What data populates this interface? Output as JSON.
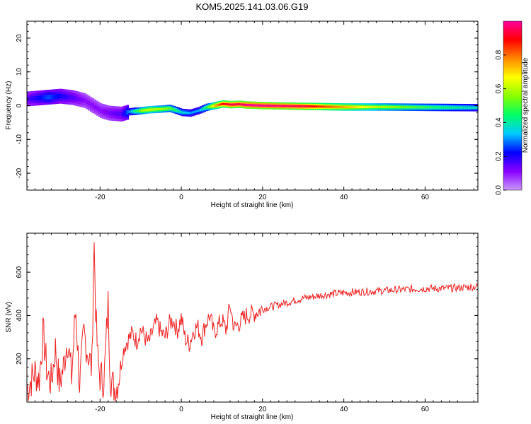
{
  "title": "KOM5.2025.141.03.06.G19",
  "chart_data": [
    {
      "type": "heatmap",
      "xlabel": "Height of straight line (km)",
      "ylabel": "Frequency (Hz)",
      "xlim": [
        -38,
        73
      ],
      "ylim": [
        -25,
        25
      ],
      "xticks": [
        -20,
        0,
        20,
        40,
        60
      ],
      "yticks": [
        -20,
        -10,
        0,
        10,
        20
      ],
      "colorbar": {
        "label": "Normalized spectral amplitude",
        "range": [
          0,
          1
        ],
        "ticks": [
          0.0,
          0.2,
          0.4,
          0.6,
          0.8
        ],
        "colormap": [
          "#cc99ff",
          "#8800ff",
          "#0000ff",
          "#00ccff",
          "#00ff66",
          "#88ff00",
          "#ffff00",
          "#ff8800",
          "#ff0000",
          "#ff0099"
        ]
      },
      "ridge": {
        "x": [
          -38,
          -33,
          -30,
          -27,
          -24,
          -22,
          -20,
          -18,
          -15,
          -13,
          -10,
          -8,
          -5,
          -3,
          0,
          2,
          4,
          6,
          8,
          10,
          12,
          14,
          16,
          20,
          30,
          40,
          50,
          60,
          73
        ],
        "freq": [
          2,
          2.5,
          2.8,
          2.4,
          1.5,
          0,
          -1.5,
          -2.2,
          -2.5,
          -1.8,
          -1.5,
          -1.2,
          -1,
          -0.8,
          -2,
          -2.2,
          -1.5,
          -0.5,
          0,
          0.5,
          0.3,
          0.4,
          0.2,
          0,
          -0.2,
          -0.4,
          -0.4,
          -0.5,
          -0.6
        ],
        "amplitude": [
          0.15,
          0.25,
          0.2,
          0.15,
          0.1,
          0.1,
          0.1,
          0.12,
          0.15,
          0.3,
          0.55,
          0.6,
          0.55,
          0.5,
          0.35,
          0.3,
          0.3,
          0.45,
          0.7,
          0.85,
          0.9,
          0.9,
          0.95,
          0.95,
          0.9,
          0.7,
          0.55,
          0.45,
          0.35
        ]
      }
    },
    {
      "type": "line",
      "xlabel": "Height of straight line (km)",
      "ylabel": "SNR (v/v)",
      "xlim": [
        -38,
        73
      ],
      "ylim": [
        0,
        780
      ],
      "xticks": [
        -20,
        0,
        20,
        40,
        60
      ],
      "yticks": [
        200,
        400,
        600
      ],
      "color": "#ee2222",
      "series": [
        {
          "x": [
            -38,
            -36,
            -35,
            -34,
            -33,
            -32,
            -31,
            -30,
            -29,
            -28,
            -27,
            -26,
            -25,
            -24,
            -23,
            -22,
            -21.5,
            -21,
            -20.5,
            -20,
            -19,
            -18,
            -17.5,
            -17,
            -16,
            -15,
            -14,
            -13,
            -12,
            -11,
            -10,
            -9,
            -8,
            -7,
            -6,
            -5,
            -4,
            -3,
            -2,
            -1,
            0,
            1,
            2,
            3,
            4,
            5,
            6,
            7,
            8,
            9,
            10,
            11,
            12,
            13,
            14,
            15,
            16,
            18,
            20,
            22,
            25,
            28,
            30,
            35,
            40,
            45,
            50,
            55,
            60,
            65,
            70,
            73
          ],
          "values": [
            60,
            140,
            100,
            320,
            130,
            90,
            250,
            80,
            160,
            300,
            110,
            440,
            70,
            320,
            230,
            150,
            770,
            380,
            180,
            120,
            100,
            460,
            130,
            80,
            60,
            160,
            260,
            290,
            320,
            280,
            340,
            300,
            270,
            330,
            370,
            320,
            300,
            360,
            380,
            330,
            390,
            290,
            270,
            330,
            350,
            300,
            360,
            400,
            320,
            350,
            380,
            330,
            450,
            340,
            360,
            380,
            400,
            410,
            430,
            440,
            455,
            470,
            480,
            495,
            505,
            510,
            515,
            520,
            525,
            525,
            530,
            535
          ]
        }
      ]
    }
  ]
}
